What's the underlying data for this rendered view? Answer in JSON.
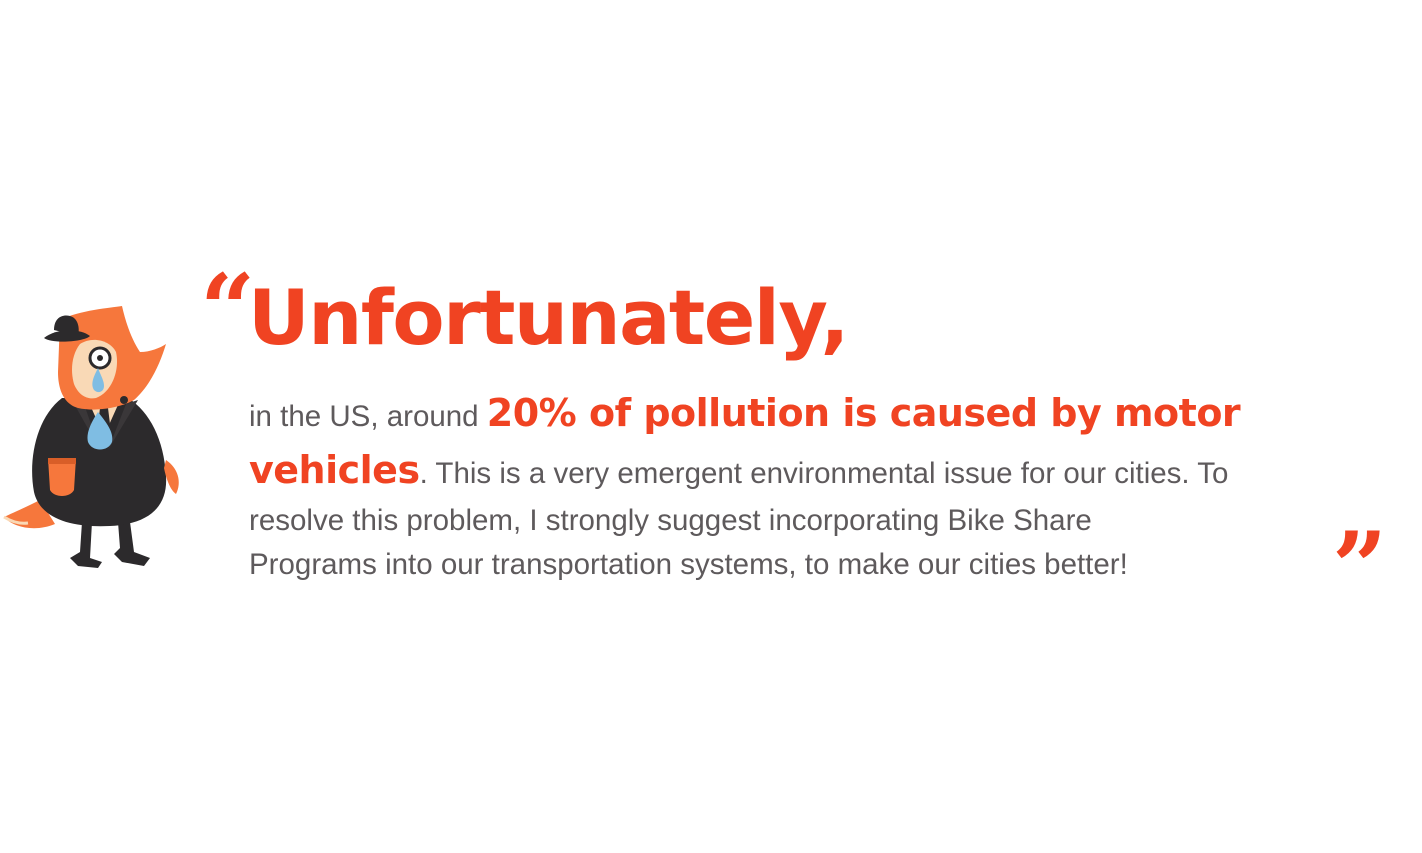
{
  "quote": {
    "open_mark": "“",
    "close_mark": "”",
    "headline": "Unfortunately,",
    "segments": {
      "intro": "in the US, around ",
      "highlight_line1": "20% of pollution is caused by motor",
      "highlight_line2": "vehicles",
      "line2_rest": ". This is a very emergent environmental issue for our cities. To",
      "line3": "resolve this problem, I strongly suggest incorporating Bike Share",
      "line4": "Programs into our transportation systems, to make our cities better!"
    }
  },
  "illustration": {
    "subject": "crying-orange-fox-in-suit-with-bowler-hat"
  },
  "colors": {
    "accent": "#f04322",
    "body_text": "#5e5a5c",
    "fox_orange": "#f6773c",
    "fox_face": "#f9d9b6",
    "suit": "#2c2a2c",
    "tear": "#7fbde3",
    "background": "#ffffff"
  }
}
